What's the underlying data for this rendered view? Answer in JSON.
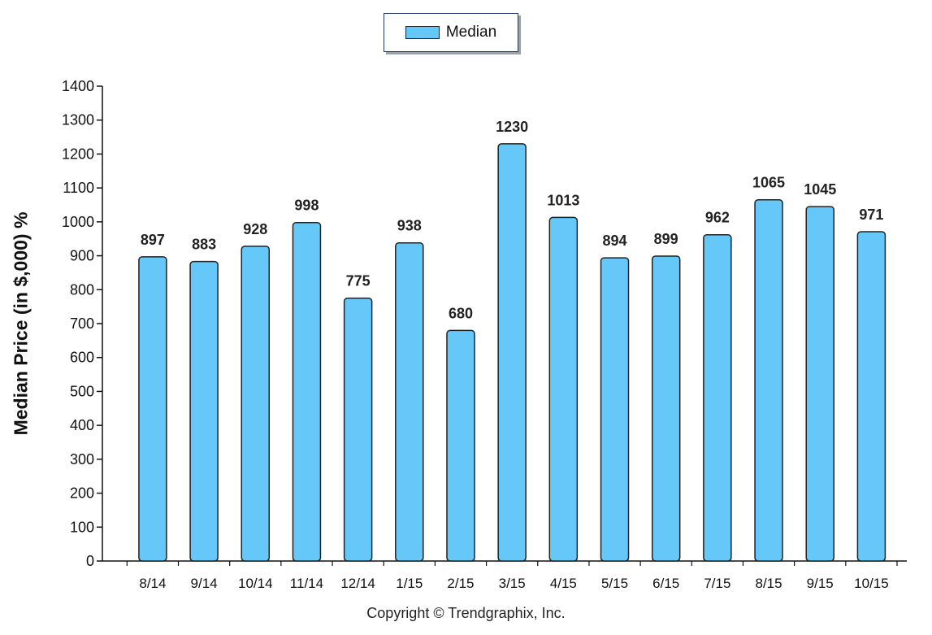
{
  "legend": {
    "label": "Median"
  },
  "footer": {
    "copyright": "Copyright © Trendgraphix, Inc."
  },
  "colors": {
    "bar_fill": "#66c8f8",
    "bar_stroke": "#222222",
    "axis": "#111111"
  },
  "chart_data": {
    "type": "bar",
    "categories": [
      "8/14",
      "9/14",
      "10/14",
      "11/14",
      "12/14",
      "1/15",
      "2/15",
      "3/15",
      "4/15",
      "5/15",
      "6/15",
      "7/15",
      "8/15",
      "9/15",
      "10/15"
    ],
    "series": [
      {
        "name": "Median",
        "values": [
          897,
          883,
          928,
          998,
          775,
          938,
          680,
          1230,
          1013,
          894,
          899,
          962,
          1065,
          1045,
          971
        ]
      }
    ],
    "title": "",
    "xlabel": "",
    "ylabel": "Median Price (in $,000) %",
    "ylim": [
      0,
      1400
    ],
    "yticks": [
      0,
      100,
      200,
      300,
      400,
      500,
      600,
      700,
      800,
      900,
      1000,
      1100,
      1200,
      1300,
      1400
    ],
    "grid": false,
    "legend_position": "top-center",
    "data_labels": true
  }
}
